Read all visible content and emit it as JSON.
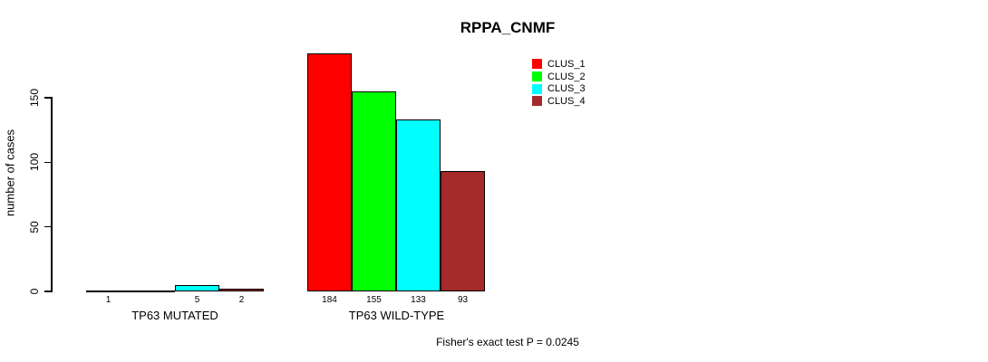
{
  "chart": {
    "title": "RPPA_CNMF",
    "ylabel": "number of cases",
    "footnote": "Fisher's exact test P = 0.0245"
  },
  "chart_data": {
    "type": "bar",
    "title": "RPPA_CNMF",
    "xlabel": "",
    "ylabel": "number of cases",
    "ylim": [
      0,
      150
    ],
    "yticks": [
      0,
      50,
      100,
      150
    ],
    "grid": false,
    "legend_position": "top-right",
    "categories": [
      "TP63 MUTATED",
      "TP63 WILD-TYPE"
    ],
    "series": [
      {
        "name": "CLUS_1",
        "color": "#ff0000",
        "values": [
          1,
          184
        ]
      },
      {
        "name": "CLUS_2",
        "color": "#00ff00",
        "values": [
          0,
          155
        ]
      },
      {
        "name": "CLUS_3",
        "color": "#00ffff",
        "values": [
          5,
          133
        ]
      },
      {
        "name": "CLUS_4",
        "color": "#a52a2a",
        "values": [
          2,
          93
        ]
      }
    ],
    "bar_labels": [
      [
        "1",
        "",
        "5",
        "2"
      ],
      [
        "184",
        "155",
        "133",
        "93"
      ]
    ],
    "annotation": "Fisher's exact test P = 0.0245"
  }
}
